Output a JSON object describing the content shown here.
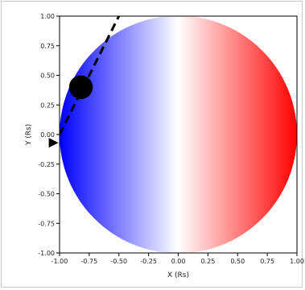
{
  "chart_data": {
    "type": "heatmap",
    "title": "",
    "xlabel": "X (Rs)",
    "ylabel": "Y (Rs)",
    "xlim": [
      -1.0,
      1.0
    ],
    "ylim": [
      -1.0,
      1.0
    ],
    "xticks": [
      "-1.00",
      "-0.75",
      "-0.50",
      "-0.25",
      "0.00",
      "0.25",
      "0.50",
      "0.75",
      "1.00"
    ],
    "yticks": [
      "1.00",
      "0.75",
      "0.50",
      "0.25",
      "0.00",
      "-0.25",
      "-0.50",
      "-0.75",
      "-1.00"
    ],
    "grid": false,
    "disk": {
      "center": [
        0.0,
        0.0
      ],
      "radius": 1.0,
      "colormap": "bwr",
      "color_left": "#0000ff",
      "color_center": "#ffffff",
      "color_right": "#ff0000"
    },
    "planet": {
      "x": -0.82,
      "y": 0.4,
      "radius": 0.1,
      "color": "#000000"
    },
    "trajectory": {
      "style": "dashed",
      "color": "#000000",
      "points": [
        [
          -1.0,
          0.0
        ],
        [
          -0.5,
          1.0
        ]
      ],
      "arrow_at": [
        -1.05,
        -0.07
      ]
    }
  }
}
